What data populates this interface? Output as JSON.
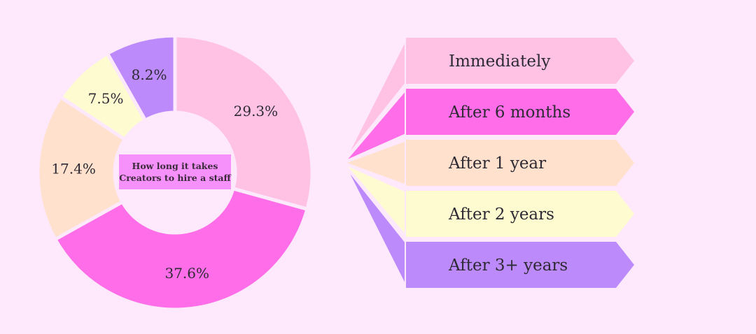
{
  "chart_data": {
    "type": "pie",
    "title": "",
    "center_label": [
      "How long it takes",
      "Creators to hire a staff"
    ],
    "categories": [
      "Immediately",
      "After 6 months",
      "After 1 year",
      "After 2 years",
      "After 3+ years"
    ],
    "values": [
      29.3,
      37.6,
      17.4,
      7.5,
      8.2
    ],
    "value_labels": [
      "29.3%",
      "37.6%",
      "17.4%",
      "7.5%",
      "8.2%"
    ],
    "colors": [
      "#ffc2e4",
      "#ff6ee8",
      "#ffe1cd",
      "#fffbd1",
      "#bd8afc"
    ],
    "center_box_color": "#f690fb",
    "legend_position": "right"
  }
}
